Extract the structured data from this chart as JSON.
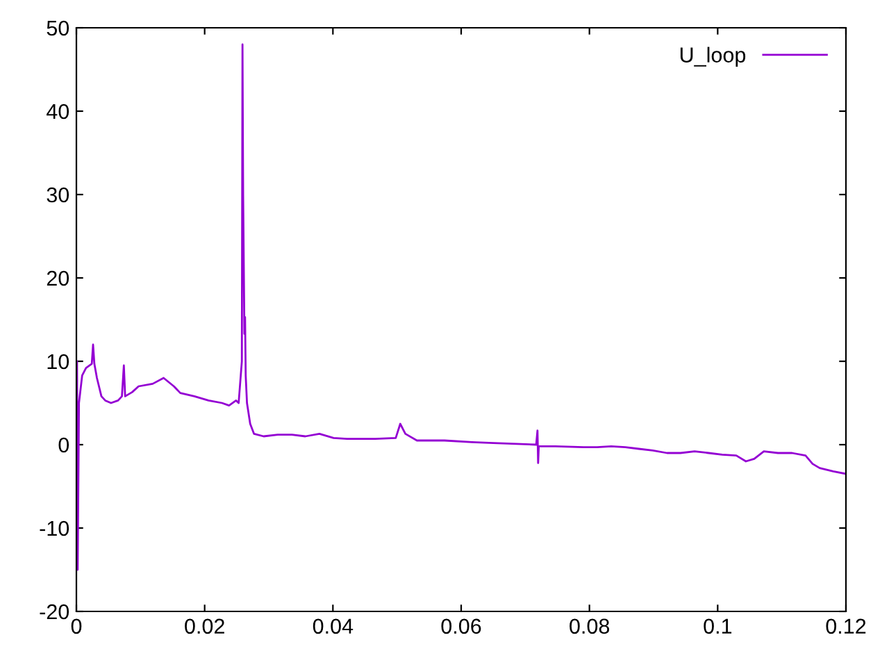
{
  "chart_data": {
    "type": "line",
    "xlim": [
      0,
      0.12
    ],
    "ylim": [
      -20,
      50
    ],
    "xticks": [
      0,
      0.02,
      0.04,
      0.06,
      0.08,
      0.1,
      0.12
    ],
    "yticks": [
      -20,
      -10,
      0,
      10,
      20,
      30,
      40,
      50
    ],
    "grid": false,
    "legend": "top right",
    "marker": "none",
    "line_style": "solid",
    "series": [
      {
        "name": "U_loop",
        "color": "#9400d3",
        "x": [
          0,
          0.0001,
          0.0002,
          0.0004,
          0.0009,
          0.0015,
          0.0024,
          0.0026,
          0.0028,
          0.0032,
          0.0039,
          0.0045,
          0.0054,
          0.0065,
          0.0071,
          0.0074,
          0.0076,
          0.0087,
          0.0097,
          0.0119,
          0.0136,
          0.0152,
          0.0162,
          0.0184,
          0.0206,
          0.0227,
          0.0238,
          0.0249,
          0.0253,
          0.0258,
          0.0259,
          0.026,
          0.0262,
          0.0263,
          0.0264,
          0.0266,
          0.0271,
          0.0277,
          0.0292,
          0.0314,
          0.0336,
          0.0357,
          0.0379,
          0.0401,
          0.0422,
          0.0444,
          0.0466,
          0.0498,
          0.0505,
          0.0513,
          0.0531,
          0.0574,
          0.0617,
          0.065,
          0.0717,
          0.0719,
          0.072,
          0.0721,
          0.0747,
          0.0791,
          0.0812,
          0.0834,
          0.0856,
          0.0877,
          0.0899,
          0.0921,
          0.0942,
          0.0964,
          0.0986,
          0.1007,
          0.1029,
          0.1044,
          0.1057,
          0.1072,
          0.1094,
          0.1116,
          0.1137,
          0.1148,
          0.1159,
          0.118,
          0.12
        ],
        "values": [
          0,
          10,
          -15,
          5,
          8.3,
          9.2,
          9.7,
          12,
          9.7,
          8,
          5.8,
          5.3,
          5,
          5.3,
          5.8,
          9.5,
          5.8,
          6.3,
          7,
          7.3,
          8,
          7,
          6.2,
          5.8,
          5.3,
          5,
          4.7,
          5.3,
          5,
          10,
          48,
          30,
          13.3,
          15.3,
          8.3,
          5,
          2.5,
          1.3,
          1,
          1.2,
          1.2,
          1,
          1.3,
          0.8,
          0.7,
          0.7,
          0.7,
          0.8,
          2.5,
          1.3,
          0.5,
          0.5,
          0.3,
          0.2,
          0,
          1.7,
          -2.2,
          -0.2,
          -0.2,
          -0.3,
          -0.3,
          -0.2,
          -0.3,
          -0.5,
          -0.7,
          -1,
          -1,
          -0.8,
          -1,
          -1.2,
          -1.3,
          -2,
          -1.7,
          -0.8,
          -1,
          -1,
          -1.3,
          -2.3,
          -2.8,
          -3.2,
          -3.5
        ]
      }
    ]
  }
}
